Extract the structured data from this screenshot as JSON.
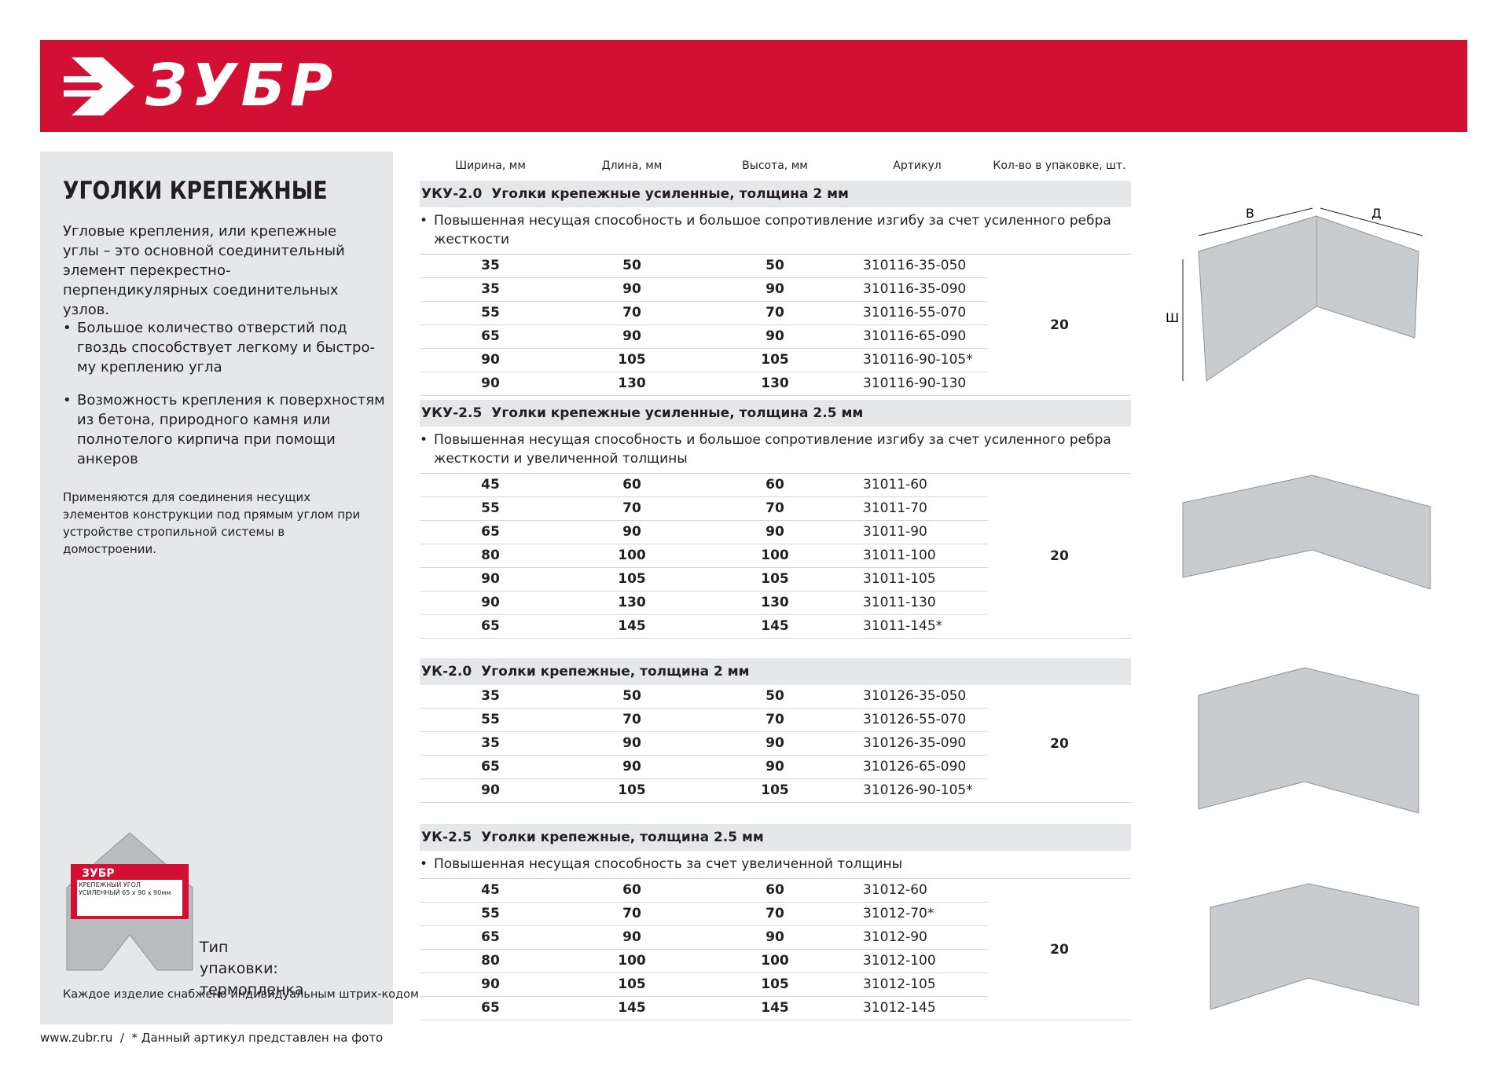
{
  "header": {
    "logo": "ЗУБР"
  },
  "sidebar": {
    "title": "УГОЛКИ КРЕПЕЖНЫЕ",
    "intro": "Угловые крепления, или крепежные углы – это основной соединительный элемент перекрестно-перпендикулярных соединительных узлов.",
    "bullets": [
      "Большое количество отверстий под гвоздь способствует легкому и быстро-му креплению угла",
      "Возможность крепления к поверхностям из бетона, природного камня или полнотелого кирпича при помощи анкеров"
    ],
    "note": "Применяются для соединения несущих элементов конструкции под прямым углом при устройстве стропильной системы в домостроении.",
    "package_label": "КРЕПЕЖНЫЙ УГОЛ УСИЛЕННЫЙ 65 x 90 x 90мм",
    "package_caption": "Тип упаковки: термопленка",
    "barcode_note": "Каждое изделие снабжено индивидуальным штрих-кодом"
  },
  "table": {
    "columns": [
      "Ширина, мм",
      "Длина, мм",
      "Высота, мм",
      "Артикул",
      "Кол-во в упаковке, шт."
    ],
    "sections": [
      {
        "code": "УКУ-2.0",
        "title": "Уголки крепежные усиленные, толщина 2 мм",
        "note": "Повышенная несущая способность и большое сопротивление изгибу за счет усиленного ребра жесткости",
        "qty": "20",
        "rows": [
          [
            "35",
            "50",
            "50",
            "310116-35-050"
          ],
          [
            "35",
            "90",
            "90",
            "310116-35-090"
          ],
          [
            "55",
            "70",
            "70",
            "310116-55-070"
          ],
          [
            "65",
            "90",
            "90",
            "310116-65-090"
          ],
          [
            "90",
            "105",
            "105",
            "310116-90-105*"
          ],
          [
            "90",
            "130",
            "130",
            "310116-90-130"
          ]
        ]
      },
      {
        "code": "УКУ-2.5",
        "title": "Уголки крепежные усиленные, толщина 2.5 мм",
        "note": "Повышенная несущая способность и большое сопротивление изгибу за счет усиленного ребра жесткости и увеличенной толщины",
        "qty": "20",
        "rows": [
          [
            "45",
            "60",
            "60",
            "31011-60"
          ],
          [
            "55",
            "70",
            "70",
            "31011-70"
          ],
          [
            "65",
            "90",
            "90",
            "31011-90"
          ],
          [
            "80",
            "100",
            "100",
            "31011-100"
          ],
          [
            "90",
            "105",
            "105",
            "31011-105"
          ],
          [
            "90",
            "130",
            "130",
            "31011-130"
          ],
          [
            "65",
            "145",
            "145",
            "31011-145*"
          ]
        ]
      },
      {
        "code": "УК-2.0",
        "title": "Уголки крепежные, толщина 2 мм",
        "qty": "20",
        "rows": [
          [
            "35",
            "50",
            "50",
            "310126-35-050"
          ],
          [
            "55",
            "70",
            "70",
            "310126-55-070"
          ],
          [
            "35",
            "90",
            "90",
            "310126-35-090"
          ],
          [
            "65",
            "90",
            "90",
            "310126-65-090"
          ],
          [
            "90",
            "105",
            "105",
            "310126-90-105*"
          ]
        ]
      },
      {
        "code": "УК-2.5",
        "title": "Уголки крепежные, толщина 2.5 мм",
        "note": "Повышенная несущая способность за счет увеличенной толщины",
        "qty": "20",
        "rows": [
          [
            "45",
            "60",
            "60",
            "31012-60"
          ],
          [
            "55",
            "70",
            "70",
            "31012-70*"
          ],
          [
            "65",
            "90",
            "90",
            "31012-90"
          ],
          [
            "80",
            "100",
            "100",
            "31012-100"
          ],
          [
            "90",
            "105",
            "105",
            "31012-105"
          ],
          [
            "65",
            "145",
            "145",
            "31012-145"
          ]
        ]
      }
    ]
  },
  "diagram_labels": [
    "В",
    "Д",
    "Ш"
  ],
  "footer": {
    "site": "www.zubr.ru",
    "separator": "/",
    "note": "* Данный артикул представлен на фото"
  }
}
